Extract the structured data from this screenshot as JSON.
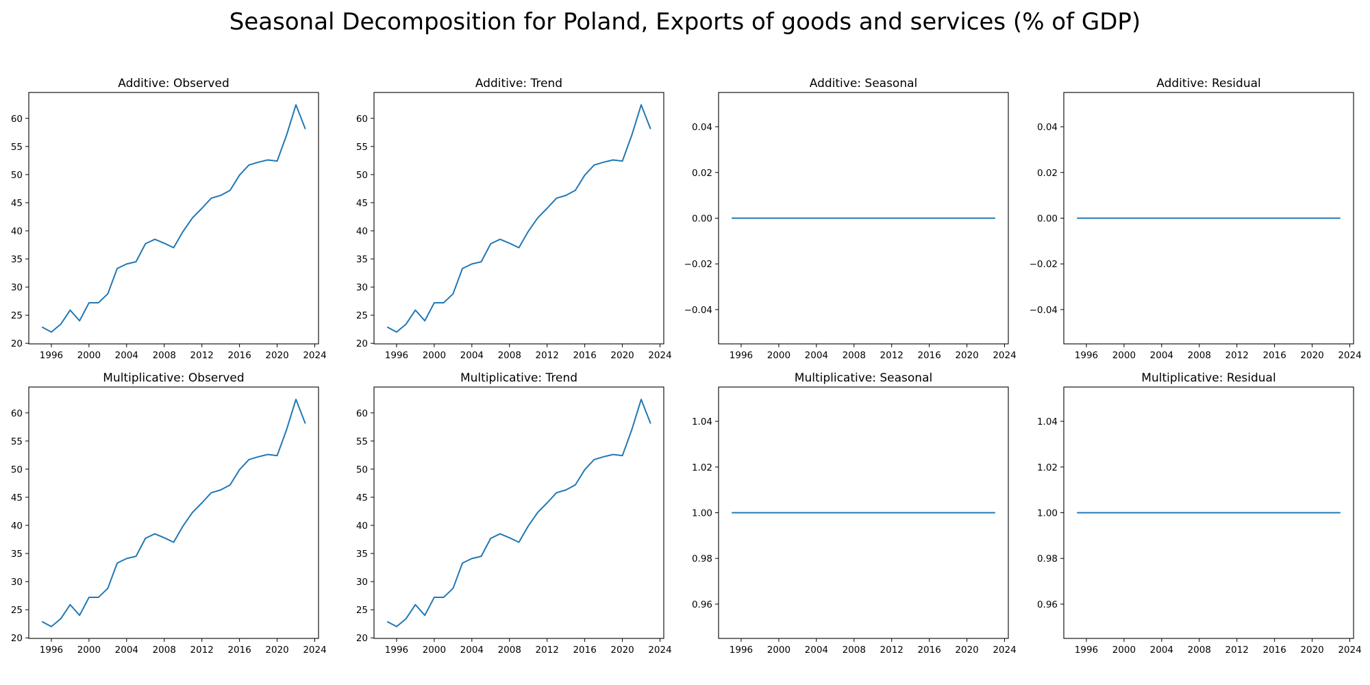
{
  "figure": {
    "title": "Seasonal Decomposition for Poland, Exports of goods and services (% of GDP)"
  },
  "colors": {
    "line": "#1f77b4",
    "axes": "#000000",
    "background": "#ffffff"
  },
  "chart_data": [
    {
      "type": "line",
      "title": "Additive: Observed",
      "x": [
        1995,
        1996,
        1997,
        1998,
        1999,
        2000,
        2001,
        2002,
        2003,
        2004,
        2005,
        2006,
        2007,
        2008,
        2009,
        2010,
        2011,
        2012,
        2013,
        2014,
        2015,
        2016,
        2017,
        2018,
        2019,
        2020,
        2021,
        2022,
        2023
      ],
      "series": [
        {
          "values": [
            22.9,
            22.0,
            23.4,
            25.9,
            24.0,
            27.2,
            27.2,
            28.8,
            33.3,
            34.1,
            34.5,
            37.7,
            38.5,
            37.8,
            37.0,
            39.9,
            42.3,
            44.0,
            45.8,
            46.3,
            47.2,
            49.9,
            51.7,
            52.2,
            52.6,
            52.4,
            57.0,
            62.4,
            58.1
          ]
        }
      ],
      "xlim": [
        1993.6,
        2024.4
      ],
      "ylim": [
        19.9,
        64.6
      ],
      "xticks": [
        1996,
        2000,
        2004,
        2008,
        2012,
        2016,
        2020,
        2024
      ],
      "xtick_labels": [
        "1996",
        "2000",
        "2004",
        "2008",
        "2012",
        "2016",
        "2020",
        "2024"
      ],
      "yticks": [
        20,
        25,
        30,
        35,
        40,
        45,
        50,
        55,
        60
      ],
      "ytick_labels": [
        "20",
        "25",
        "30",
        "35",
        "40",
        "45",
        "50",
        "55",
        "60"
      ]
    },
    {
      "type": "line",
      "title": "Additive: Trend",
      "x": [
        1995,
        1996,
        1997,
        1998,
        1999,
        2000,
        2001,
        2002,
        2003,
        2004,
        2005,
        2006,
        2007,
        2008,
        2009,
        2010,
        2011,
        2012,
        2013,
        2014,
        2015,
        2016,
        2017,
        2018,
        2019,
        2020,
        2021,
        2022,
        2023
      ],
      "series": [
        {
          "values": [
            22.9,
            22.0,
            23.4,
            25.9,
            24.0,
            27.2,
            27.2,
            28.8,
            33.3,
            34.1,
            34.5,
            37.7,
            38.5,
            37.8,
            37.0,
            39.9,
            42.3,
            44.0,
            45.8,
            46.3,
            47.2,
            49.9,
            51.7,
            52.2,
            52.6,
            52.4,
            57.0,
            62.4,
            58.1
          ]
        }
      ],
      "xlim": [
        1993.6,
        2024.4
      ],
      "ylim": [
        19.9,
        64.6
      ],
      "xticks": [
        1996,
        2000,
        2004,
        2008,
        2012,
        2016,
        2020,
        2024
      ],
      "xtick_labels": [
        "1996",
        "2000",
        "2004",
        "2008",
        "2012",
        "2016",
        "2020",
        "2024"
      ],
      "yticks": [
        20,
        25,
        30,
        35,
        40,
        45,
        50,
        55,
        60
      ],
      "ytick_labels": [
        "20",
        "25",
        "30",
        "35",
        "40",
        "45",
        "50",
        "55",
        "60"
      ]
    },
    {
      "type": "line",
      "title": "Additive: Seasonal",
      "x": [
        1995,
        2023
      ],
      "series": [
        {
          "values": [
            0.0,
            0.0
          ]
        }
      ],
      "xlim": [
        1993.6,
        2024.4
      ],
      "ylim": [
        -0.055,
        0.055
      ],
      "xticks": [
        1996,
        2000,
        2004,
        2008,
        2012,
        2016,
        2020,
        2024
      ],
      "xtick_labels": [
        "1996",
        "2000",
        "2004",
        "2008",
        "2012",
        "2016",
        "2020",
        "2024"
      ],
      "yticks": [
        -0.04,
        -0.02,
        0.0,
        0.02,
        0.04
      ],
      "ytick_labels": [
        "−0.04",
        "−0.02",
        "0.00",
        "0.02",
        "0.04"
      ]
    },
    {
      "type": "line",
      "title": "Additive: Residual",
      "x": [
        1995,
        2023
      ],
      "series": [
        {
          "values": [
            0.0,
            0.0
          ]
        }
      ],
      "xlim": [
        1993.6,
        2024.4
      ],
      "ylim": [
        -0.055,
        0.055
      ],
      "xticks": [
        1996,
        2000,
        2004,
        2008,
        2012,
        2016,
        2020,
        2024
      ],
      "xtick_labels": [
        "1996",
        "2000",
        "2004",
        "2008",
        "2012",
        "2016",
        "2020",
        "2024"
      ],
      "yticks": [
        -0.04,
        -0.02,
        0.0,
        0.02,
        0.04
      ],
      "ytick_labels": [
        "−0.04",
        "−0.02",
        "0.00",
        "0.02",
        "0.04"
      ]
    },
    {
      "type": "line",
      "title": "Multiplicative: Observed",
      "x": [
        1995,
        1996,
        1997,
        1998,
        1999,
        2000,
        2001,
        2002,
        2003,
        2004,
        2005,
        2006,
        2007,
        2008,
        2009,
        2010,
        2011,
        2012,
        2013,
        2014,
        2015,
        2016,
        2017,
        2018,
        2019,
        2020,
        2021,
        2022,
        2023
      ],
      "series": [
        {
          "values": [
            22.9,
            22.0,
            23.4,
            25.9,
            24.0,
            27.2,
            27.2,
            28.8,
            33.3,
            34.1,
            34.5,
            37.7,
            38.5,
            37.8,
            37.0,
            39.9,
            42.3,
            44.0,
            45.8,
            46.3,
            47.2,
            49.9,
            51.7,
            52.2,
            52.6,
            52.4,
            57.0,
            62.4,
            58.1
          ]
        }
      ],
      "xlim": [
        1993.6,
        2024.4
      ],
      "ylim": [
        19.9,
        64.6
      ],
      "xticks": [
        1996,
        2000,
        2004,
        2008,
        2012,
        2016,
        2020,
        2024
      ],
      "xtick_labels": [
        "1996",
        "2000",
        "2004",
        "2008",
        "2012",
        "2016",
        "2020",
        "2024"
      ],
      "yticks": [
        20,
        25,
        30,
        35,
        40,
        45,
        50,
        55,
        60
      ],
      "ytick_labels": [
        "20",
        "25",
        "30",
        "35",
        "40",
        "45",
        "50",
        "55",
        "60"
      ]
    },
    {
      "type": "line",
      "title": "Multiplicative: Trend",
      "x": [
        1995,
        1996,
        1997,
        1998,
        1999,
        2000,
        2001,
        2002,
        2003,
        2004,
        2005,
        2006,
        2007,
        2008,
        2009,
        2010,
        2011,
        2012,
        2013,
        2014,
        2015,
        2016,
        2017,
        2018,
        2019,
        2020,
        2021,
        2022,
        2023
      ],
      "series": [
        {
          "values": [
            22.9,
            22.0,
            23.4,
            25.9,
            24.0,
            27.2,
            27.2,
            28.8,
            33.3,
            34.1,
            34.5,
            37.7,
            38.5,
            37.8,
            37.0,
            39.9,
            42.3,
            44.0,
            45.8,
            46.3,
            47.2,
            49.9,
            51.7,
            52.2,
            52.6,
            52.4,
            57.0,
            62.4,
            58.1
          ]
        }
      ],
      "xlim": [
        1993.6,
        2024.4
      ],
      "ylim": [
        19.9,
        64.6
      ],
      "xticks": [
        1996,
        2000,
        2004,
        2008,
        2012,
        2016,
        2020,
        2024
      ],
      "xtick_labels": [
        "1996",
        "2000",
        "2004",
        "2008",
        "2012",
        "2016",
        "2020",
        "2024"
      ],
      "yticks": [
        20,
        25,
        30,
        35,
        40,
        45,
        50,
        55,
        60
      ],
      "ytick_labels": [
        "20",
        "25",
        "30",
        "35",
        "40",
        "45",
        "50",
        "55",
        "60"
      ]
    },
    {
      "type": "line",
      "title": "Multiplicative: Seasonal",
      "x": [
        1995,
        2023
      ],
      "series": [
        {
          "values": [
            1.0,
            1.0
          ]
        }
      ],
      "xlim": [
        1993.6,
        2024.4
      ],
      "ylim": [
        0.945,
        1.055
      ],
      "xticks": [
        1996,
        2000,
        2004,
        2008,
        2012,
        2016,
        2020,
        2024
      ],
      "xtick_labels": [
        "1996",
        "2000",
        "2004",
        "2008",
        "2012",
        "2016",
        "2020",
        "2024"
      ],
      "yticks": [
        0.96,
        0.98,
        1.0,
        1.02,
        1.04
      ],
      "ytick_labels": [
        "0.96",
        "0.98",
        "1.00",
        "1.02",
        "1.04"
      ]
    },
    {
      "type": "line",
      "title": "Multiplicative: Residual",
      "x": [
        1995,
        2023
      ],
      "series": [
        {
          "values": [
            1.0,
            1.0
          ]
        }
      ],
      "xlim": [
        1993.6,
        2024.4
      ],
      "ylim": [
        0.945,
        1.055
      ],
      "xticks": [
        1996,
        2000,
        2004,
        2008,
        2012,
        2016,
        2020,
        2024
      ],
      "xtick_labels": [
        "1996",
        "2000",
        "2004",
        "2008",
        "2012",
        "2016",
        "2020",
        "2024"
      ],
      "yticks": [
        0.96,
        0.98,
        1.0,
        1.02,
        1.04
      ],
      "ytick_labels": [
        "0.96",
        "0.98",
        "1.00",
        "1.02",
        "1.04"
      ]
    }
  ]
}
